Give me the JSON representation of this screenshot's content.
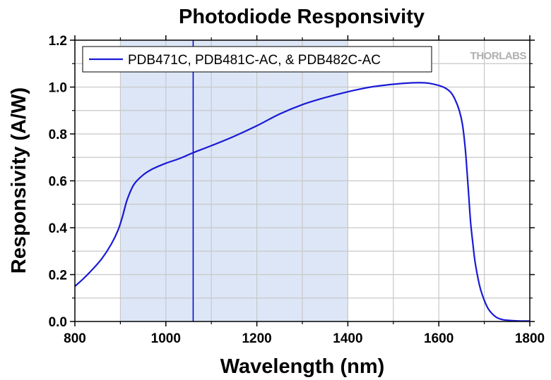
{
  "chart_data": {
    "type": "line",
    "title": "Photodiode Responsivity",
    "xlabel": "Wavelength (nm)",
    "ylabel": "Responsivity (A/W)",
    "xlim": [
      800,
      1800
    ],
    "ylim": [
      0,
      1.2
    ],
    "xticks": [
      800,
      1000,
      1200,
      1400,
      1600,
      1800
    ],
    "xtick_labels": [
      "800",
      "1000",
      "1200",
      "1400",
      "1600",
      "1800"
    ],
    "yticks": [
      0,
      0.2,
      0.4,
      0.6,
      0.8,
      1.0,
      1.2
    ],
    "ytick_labels": [
      "0.0",
      "0.2",
      "0.4",
      "0.6",
      "0.8",
      "1.0",
      "1.2"
    ],
    "grid": true,
    "legend_position": "top-left",
    "logo": "THORLABS",
    "shaded_region": {
      "x_start": 900,
      "x_end": 1400,
      "color": "#dce6f6"
    },
    "vertical_line": {
      "x": 1060,
      "color": "#0000cc"
    },
    "series": [
      {
        "name": "PDB471C, PDB481C-AC, & PDB482C-AC",
        "color": "#1a1ad6",
        "x": [
          800,
          820,
          840,
          860,
          880,
          895,
          905,
          915,
          930,
          950,
          970,
          1000,
          1030,
          1060,
          1100,
          1150,
          1200,
          1250,
          1300,
          1350,
          1400,
          1450,
          1500,
          1540,
          1570,
          1590,
          1610,
          1625,
          1635,
          1645,
          1652,
          1658,
          1662,
          1666,
          1670,
          1675,
          1680,
          1690,
          1700,
          1710,
          1725,
          1740,
          1760,
          1780,
          1800
        ],
        "y": [
          0.15,
          0.185,
          0.225,
          0.27,
          0.33,
          0.39,
          0.45,
          0.52,
          0.585,
          0.625,
          0.65,
          0.675,
          0.695,
          0.72,
          0.75,
          0.79,
          0.835,
          0.885,
          0.925,
          0.955,
          0.98,
          1.0,
          1.012,
          1.018,
          1.018,
          1.012,
          1.0,
          0.98,
          0.95,
          0.9,
          0.84,
          0.74,
          0.64,
          0.53,
          0.42,
          0.33,
          0.25,
          0.15,
          0.09,
          0.05,
          0.02,
          0.008,
          0.004,
          0.002,
          0.002
        ]
      }
    ]
  }
}
